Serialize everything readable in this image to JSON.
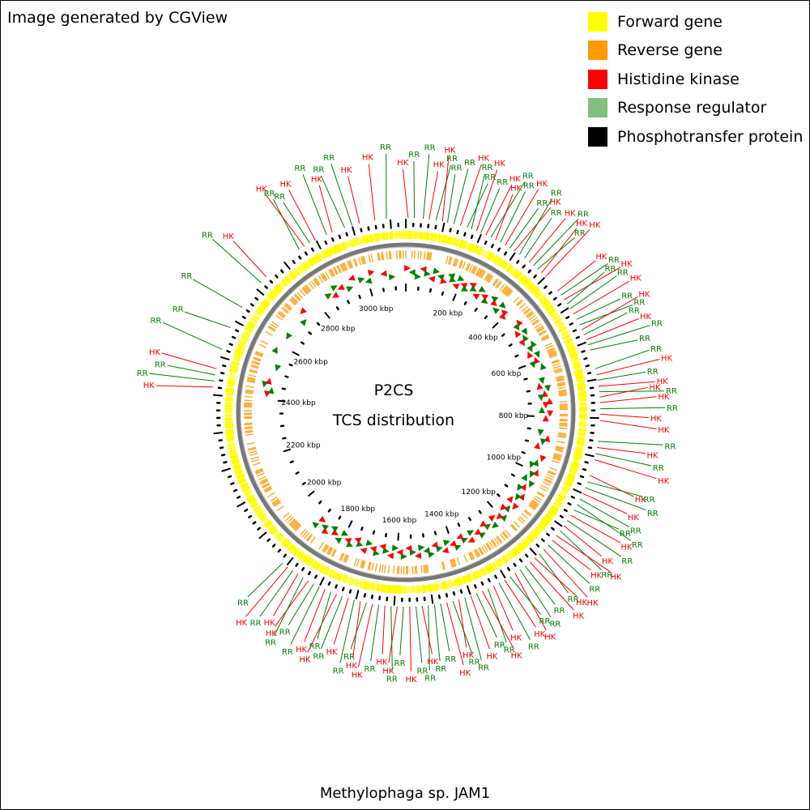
{
  "credit": "Image generated by CGView",
  "legend": [
    {
      "label": "Forward gene",
      "color": "#ffff00"
    },
    {
      "label": "Reverse gene",
      "color": "#ff9900"
    },
    {
      "label": "Histidine kinase",
      "color": "#ff0000"
    },
    {
      "label": "Response regulator",
      "color": "#80c080"
    },
    {
      "label": "Phosphotransfer protein",
      "color": "#000000"
    }
  ],
  "map": {
    "title": "P2CS",
    "subtitle": "TCS distribution",
    "organism": "Methylophaga sp. JAM1",
    "genome_length_kbp": 3140,
    "scale_labels": [
      "200 kbp",
      "400 kbp",
      "600 kbp",
      "800 kbp",
      "1000 kbp",
      "1200 kbp",
      "1400 kbp",
      "1600 kbp",
      "1800 kbp",
      "2000 kbp",
      "2200 kbp",
      "2400 kbp",
      "2600 kbp",
      "2800 kbp",
      "3000 kbp"
    ],
    "scale_positions_kbp": [
      200,
      400,
      600,
      800,
      1000,
      1200,
      1400,
      1600,
      1800,
      2000,
      2200,
      2400,
      2600,
      2800,
      3000
    ],
    "feature_labels": [
      {
        "text": "HK",
        "pos": 6
      },
      {
        "text": "RR",
        "pos": 22
      },
      {
        "text": "RR",
        "pos": 45
      },
      {
        "text": "HK",
        "pos": 60
      },
      {
        "text": "RR",
        "pos": 78
      },
      {
        "text": "HK",
        "pos": 95
      },
      {
        "text": "RR",
        "pos": 108
      },
      {
        "text": "RR",
        "pos": 125
      },
      {
        "text": "HK",
        "pos": 142
      },
      {
        "text": "RR",
        "pos": 160
      },
      {
        "text": "RR",
        "pos": 172
      },
      {
        "text": "HK",
        "pos": 186
      },
      {
        "text": "RR",
        "pos": 198
      },
      {
        "text": "HK",
        "pos": 212
      },
      {
        "text": "RR",
        "pos": 226
      },
      {
        "text": "HK",
        "pos": 240
      },
      {
        "text": "RR",
        "pos": 254
      },
      {
        "text": "HK",
        "pos": 268
      },
      {
        "text": "RR",
        "pos": 282
      },
      {
        "text": "HK",
        "pos": 296
      },
      {
        "text": "RR",
        "pos": 312
      },
      {
        "text": "RR",
        "pos": 328
      },
      {
        "text": "HK",
        "pos": 344
      },
      {
        "text": "RR",
        "pos": 358
      },
      {
        "text": "RR",
        "pos": 372
      },
      {
        "text": "HK",
        "pos": 386
      },
      {
        "text": "HK",
        "pos": 400
      },
      {
        "text": "HK",
        "pos": 448
      },
      {
        "text": "RR",
        "pos": 462
      },
      {
        "text": "HK",
        "pos": 476
      },
      {
        "text": "RR",
        "pos": 490
      },
      {
        "text": "RR",
        "pos": 504
      },
      {
        "text": "HK",
        "pos": 520
      },
      {
        "text": "RR",
        "pos": 536
      },
      {
        "text": "RR",
        "pos": 552
      },
      {
        "text": "HK",
        "pos": 566
      },
      {
        "text": "RR",
        "pos": 580
      },
      {
        "text": "HK",
        "pos": 594
      },
      {
        "text": "RR",
        "pos": 608
      },
      {
        "text": "RR",
        "pos": 622
      },
      {
        "text": "RR",
        "pos": 672
      },
      {
        "text": "HK",
        "pos": 688
      },
      {
        "text": "RR",
        "pos": 702
      },
      {
        "text": "HK",
        "pos": 718
      },
      {
        "text": "RR",
        "pos": 732
      },
      {
        "text": "HK",
        "pos": 746
      },
      {
        "text": "HK",
        "pos": 760
      },
      {
        "text": "RR",
        "pos": 776
      },
      {
        "text": "HK",
        "pos": 790
      },
      {
        "text": "HK",
        "pos": 806
      },
      {
        "text": "RR",
        "pos": 860
      },
      {
        "text": "HK",
        "pos": 876
      },
      {
        "text": "RR",
        "pos": 892
      },
      {
        "text": "HK",
        "pos": 908
      },
      {
        "text": "HK",
        "pos": 950
      },
      {
        "text": "RR",
        "pos": 968
      },
      {
        "text": "RR",
        "pos": 984
      },
      {
        "text": "HK",
        "pos": 1000
      },
      {
        "text": "RR",
        "pos": 1016
      },
      {
        "text": "RR",
        "pos": 1032
      },
      {
        "text": "RR",
        "pos": 1048
      },
      {
        "text": "HK",
        "pos": 1064
      },
      {
        "text": "RR",
        "pos": 1080
      },
      {
        "text": "HK",
        "pos": 1096
      },
      {
        "text": "RR",
        "pos": 1112
      },
      {
        "text": "HK",
        "pos": 1128
      },
      {
        "text": "HK",
        "pos": 1144
      },
      {
        "text": "RR",
        "pos": 1160
      },
      {
        "text": "HK",
        "pos": 1176
      },
      {
        "text": "RR",
        "pos": 1192
      },
      {
        "text": "HK",
        "pos": 1208
      },
      {
        "text": "HK",
        "pos": 1224
      },
      {
        "text": "RR",
        "pos": 1240
      },
      {
        "text": "RR",
        "pos": 1256
      },
      {
        "text": "HK",
        "pos": 1272
      },
      {
        "text": "RR",
        "pos": 1288
      },
      {
        "text": "HK",
        "pos": 1304
      },
      {
        "text": "RR",
        "pos": 1320
      },
      {
        "text": "HK",
        "pos": 1336
      },
      {
        "text": "RR",
        "pos": 1352
      },
      {
        "text": "HK",
        "pos": 1368
      },
      {
        "text": "RR",
        "pos": 1384
      },
      {
        "text": "HK",
        "pos": 1400
      },
      {
        "text": "RR",
        "pos": 1416
      },
      {
        "text": "HK",
        "pos": 1432
      },
      {
        "text": "RR",
        "pos": 1448
      },
      {
        "text": "HK",
        "pos": 1464
      },
      {
        "text": "RR",
        "pos": 1480
      },
      {
        "text": "RR",
        "pos": 1496
      },
      {
        "text": "RR",
        "pos": 1512
      },
      {
        "text": "HK",
        "pos": 1528
      },
      {
        "text": "RR",
        "pos": 1544
      },
      {
        "text": "HK",
        "pos": 1560
      },
      {
        "text": "RR",
        "pos": 1576
      },
      {
        "text": "HK",
        "pos": 1592
      },
      {
        "text": "RR",
        "pos": 1608
      },
      {
        "text": "HK",
        "pos": 1624
      },
      {
        "text": "RR",
        "pos": 1640
      },
      {
        "text": "HK",
        "pos": 1656
      },
      {
        "text": "RR",
        "pos": 1672
      },
      {
        "text": "HK",
        "pos": 1688
      },
      {
        "text": "RR",
        "pos": 1704
      },
      {
        "text": "HK",
        "pos": 1720
      },
      {
        "text": "RR",
        "pos": 1736
      },
      {
        "text": "HK",
        "pos": 1752
      },
      {
        "text": "RR",
        "pos": 1768
      },
      {
        "text": "HK",
        "pos": 1784
      },
      {
        "text": "RR",
        "pos": 1800
      },
      {
        "text": "RR",
        "pos": 1816
      },
      {
        "text": "HK",
        "pos": 1832
      },
      {
        "text": "RR",
        "pos": 1848
      },
      {
        "text": "HK",
        "pos": 1864
      },
      {
        "text": "RR",
        "pos": 1880
      },
      {
        "text": "HK",
        "pos": 1896
      },
      {
        "text": "RR",
        "pos": 1912
      },
      {
        "text": "HK",
        "pos": 2420
      },
      {
        "text": "RR",
        "pos": 2436
      },
      {
        "text": "RR",
        "pos": 2452
      },
      {
        "text": "HK",
        "pos": 2468
      },
      {
        "text": "RR",
        "pos": 2520
      },
      {
        "text": "RR",
        "pos": 2580
      },
      {
        "text": "RR",
        "pos": 2640
      },
      {
        "text": "RR",
        "pos": 2720
      },
      {
        "text": "HK",
        "pos": 2740
      },
      {
        "text": "RR",
        "pos": 2850
      },
      {
        "text": "HK",
        "pos": 2866
      },
      {
        "text": "RR",
        "pos": 2882
      },
      {
        "text": "HK",
        "pos": 2898
      },
      {
        "text": "RR",
        "pos": 2930
      },
      {
        "text": "HK",
        "pos": 2946
      },
      {
        "text": "RR",
        "pos": 2980
      },
      {
        "text": "RR",
        "pos": 3000
      },
      {
        "text": "HK",
        "pos": 3020
      },
      {
        "text": "HK",
        "pos": 3060
      },
      {
        "text": "RR",
        "pos": 3090
      }
    ]
  }
}
